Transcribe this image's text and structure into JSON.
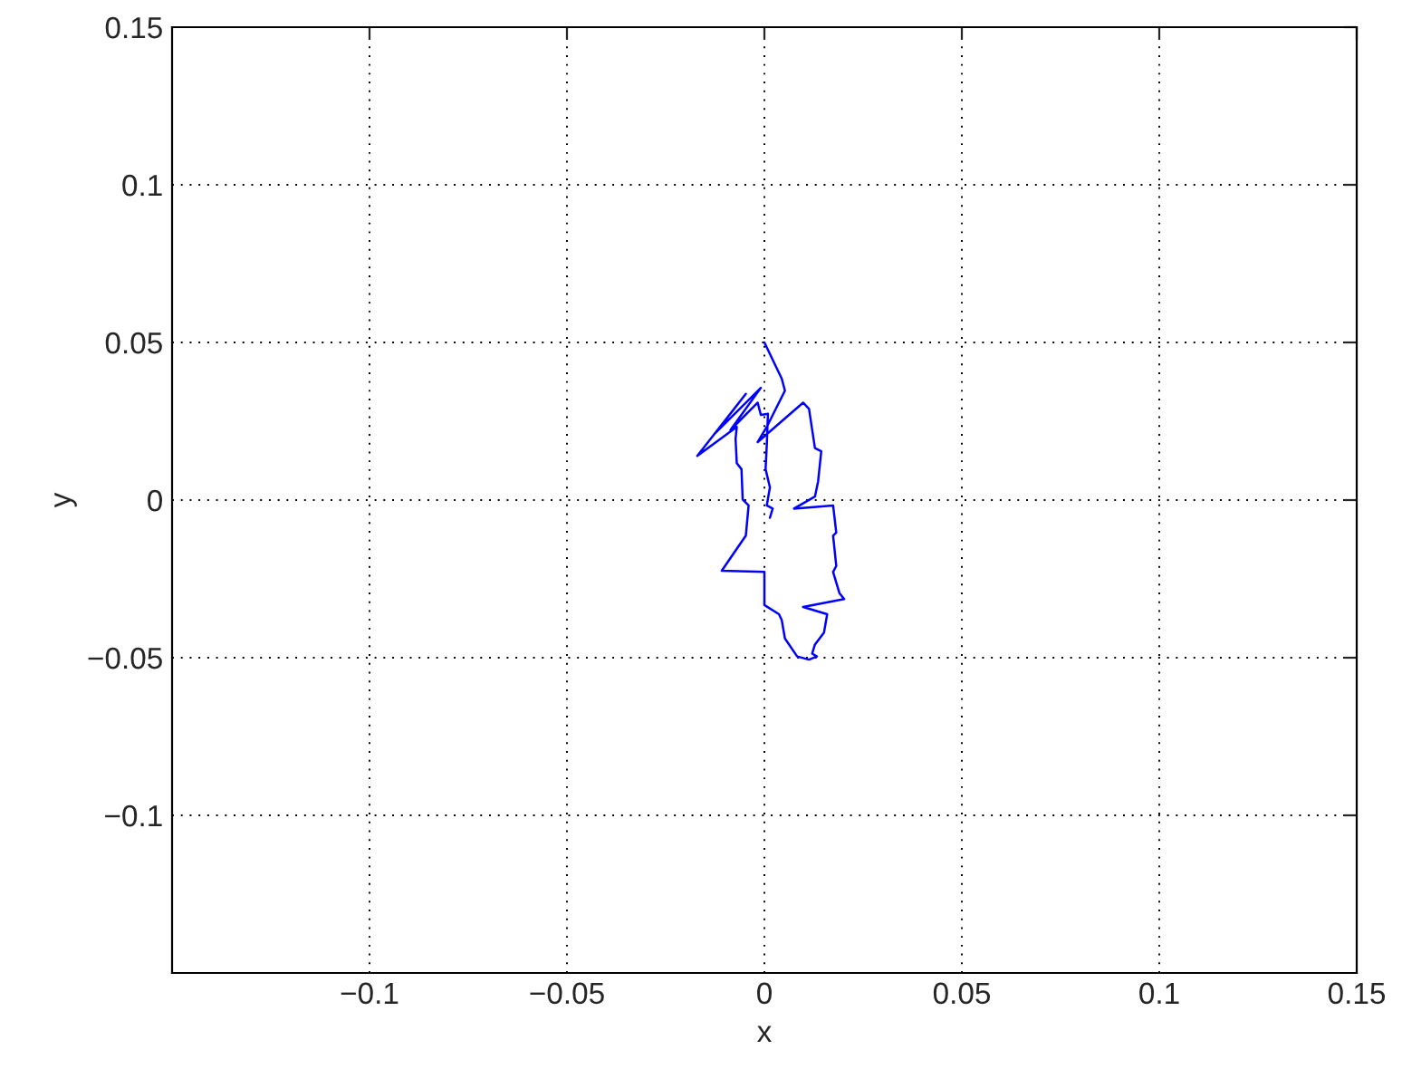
{
  "chart_data": {
    "type": "line",
    "xlabel": "x",
    "ylabel": "y",
    "xlim": [
      -0.15,
      0.15
    ],
    "ylim": [
      -0.15,
      0.15
    ],
    "xticks": [
      {
        "value": -0.1,
        "label": "−0.1"
      },
      {
        "value": -0.05,
        "label": "−0.05"
      },
      0,
      0.05,
      0.1,
      0.15
    ],
    "yticks": [
      {
        "value": -0.1,
        "label": "−0.1"
      },
      {
        "value": -0.05,
        "label": "−0.05"
      },
      0,
      0.05,
      0.1,
      0.15
    ],
    "grid": true,
    "line_style": "solid",
    "marker": "none",
    "series": [
      {
        "color": "#0000ff",
        "x": [
          0,
          0.0044,
          0.0052,
          0.0006,
          -0.0017,
          0.0098,
          0.0113,
          0.0128,
          0.0144,
          0.0136,
          0.0128,
          0.0075,
          0.0174,
          0.0182,
          0.0174,
          0.0182,
          0.0174,
          0.019,
          0.0202,
          0.0098,
          0.0159,
          0.0151,
          0.0128,
          0.0121,
          0.0133,
          0.0113,
          0.0083,
          0.0052,
          0.0044,
          0.0037,
          0,
          0,
          -0.0108,
          -0.0047,
          -0.004,
          -0.0055,
          -0.0058,
          -0.007,
          -0.0073,
          -0.007,
          -0.017,
          -0.0047,
          -0.0124,
          -0.0009,
          -0.0086,
          -0.0017,
          -0.0009,
          0.0009,
          0.0006,
          0.0003,
          0.0014,
          0.0006,
          0.0021,
          0.0014
        ],
        "values": [
          0.05,
          0.0385,
          0.0347,
          0.0232,
          0.0184,
          0.0309,
          0.0289,
          0.0165,
          0.0155,
          0.0059,
          0.0011,
          -0.0027,
          -0.0017,
          -0.0103,
          -0.0113,
          -0.0209,
          -0.0228,
          -0.0295,
          -0.0314,
          -0.0339,
          -0.0362,
          -0.042,
          -0.0458,
          -0.0487,
          -0.0496,
          -0.0506,
          -0.0496,
          -0.0439,
          -0.0381,
          -0.0362,
          -0.0333,
          -0.0228,
          -0.0224,
          -0.0113,
          -0.0017,
          0.0002,
          0.0098,
          0.0117,
          0.0194,
          0.0232,
          0.014,
          0.0337,
          0.0213,
          0.0356,
          0.0222,
          0.0309,
          0.027,
          0.0274,
          0.0174,
          0.0098,
          0.004,
          -0.0017,
          -0.0027,
          -0.0056
        ]
      }
    ]
  }
}
